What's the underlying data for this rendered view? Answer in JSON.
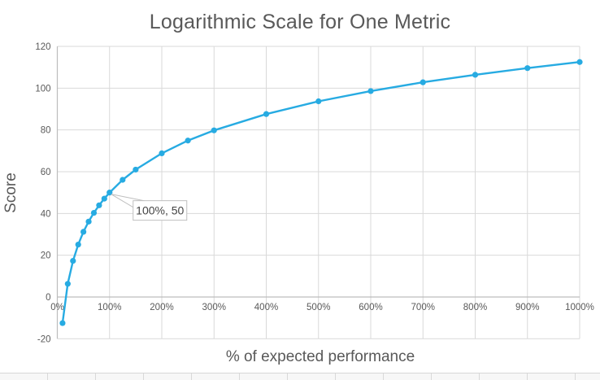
{
  "colors": {
    "line": "#27ABE2",
    "gridline": "#D9D9D9",
    "axis_line": "#BDBDBD",
    "text": "#595959",
    "annotation_border": "#BFBFBF",
    "annotation_text": "#444444",
    "background": "#FFFFFF"
  },
  "chart_data": {
    "type": "line",
    "title": "Logarithmic Scale for One Metric",
    "xlabel": "% of expected performance",
    "ylabel": "Score",
    "xlim": [
      0,
      1000
    ],
    "ylim": [
      -20,
      120
    ],
    "grid": true,
    "legend_position": "none",
    "x_ticks": {
      "values": [
        0,
        100,
        200,
        300,
        400,
        500,
        600,
        700,
        800,
        900,
        1000
      ],
      "labels": [
        "0%",
        "100%",
        "200%",
        "300%",
        "400%",
        "500%",
        "600%",
        "700%",
        "800%",
        "900%",
        "1000%"
      ]
    },
    "y_ticks": {
      "values": [
        -20,
        0,
        20,
        40,
        60,
        80,
        100,
        120
      ],
      "labels": [
        "-20",
        "0",
        "20",
        "40",
        "60",
        "80",
        "100",
        "120"
      ]
    },
    "series": [
      {
        "name": "Score",
        "color": "#27ABE2",
        "points": [
          [
            10,
            -12.5
          ],
          [
            20,
            6.3
          ],
          [
            30,
            17.3
          ],
          [
            40,
            25.1
          ],
          [
            50,
            31.2
          ],
          [
            60,
            36.1
          ],
          [
            70,
            40.3
          ],
          [
            80,
            43.9
          ],
          [
            90,
            47.1
          ],
          [
            100,
            50
          ],
          [
            125,
            56.1
          ],
          [
            150,
            61.0
          ],
          [
            200,
            68.8
          ],
          [
            250,
            74.9
          ],
          [
            300,
            79.8
          ],
          [
            400,
            87.6
          ],
          [
            500,
            93.7
          ],
          [
            600,
            98.6
          ],
          [
            700,
            102.8
          ],
          [
            800,
            106.4
          ],
          [
            900,
            109.6
          ],
          [
            1000,
            112.5
          ]
        ]
      }
    ],
    "annotation": {
      "text": "100%, 50",
      "anchor_x": 100,
      "anchor_y": 50
    }
  }
}
